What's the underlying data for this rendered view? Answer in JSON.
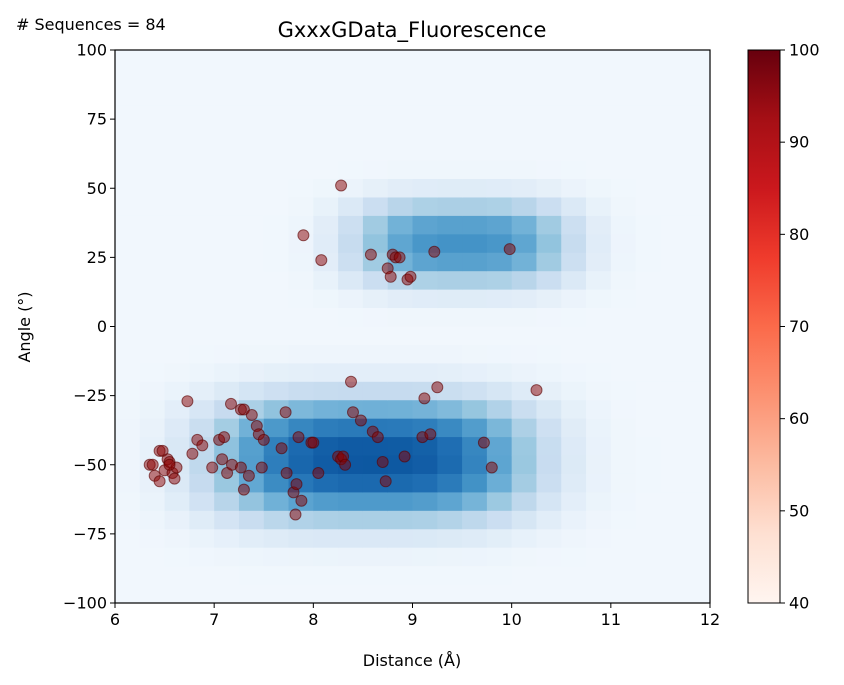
{
  "header": {
    "annotation": "# Sequences = 84"
  },
  "chart_data": {
    "type": "scatter",
    "title": "GxxxGData_Fluorescence",
    "xlabel": "Distance (Å)",
    "ylabel": "Angle (°)",
    "xlim": [
      6,
      12
    ],
    "ylim": [
      -100,
      100
    ],
    "xticks": [
      "6",
      "7",
      "8",
      "9",
      "10",
      "11",
      "12"
    ],
    "yticks": [
      "−100",
      "−75",
      "−50",
      "−25",
      "0",
      "25",
      "50",
      "75",
      "100"
    ],
    "grid": false,
    "background": {
      "type": "heatmap",
      "colormap": "Blues",
      "x_bins": 24,
      "y_bins": 30,
      "clusters": [
        {
          "x": 8.6,
          "y": -48,
          "sx": 1.3,
          "sy": 17,
          "w": 1.0
        },
        {
          "x": 9.5,
          "y": 30,
          "sx": 0.9,
          "sy": 12,
          "w": 0.72
        }
      ]
    },
    "colorbar": {
      "colormap": "Reds",
      "min": 40,
      "max": 100,
      "ticks": [
        "40",
        "50",
        "60",
        "70",
        "80",
        "90",
        "100"
      ]
    },
    "points_color": "#8b0000",
    "points": [
      {
        "x": 6.35,
        "y": -50,
        "v": 100
      },
      {
        "x": 6.38,
        "y": -50,
        "v": 100
      },
      {
        "x": 6.4,
        "y": -54,
        "v": 100
      },
      {
        "x": 6.45,
        "y": -56,
        "v": 100
      },
      {
        "x": 6.45,
        "y": -45,
        "v": 100
      },
      {
        "x": 6.48,
        "y": -45,
        "v": 100
      },
      {
        "x": 6.5,
        "y": -52,
        "v": 100
      },
      {
        "x": 6.53,
        "y": -48,
        "v": 100
      },
      {
        "x": 6.55,
        "y": -49,
        "v": 100
      },
      {
        "x": 6.58,
        "y": -53,
        "v": 100
      },
      {
        "x": 6.6,
        "y": -55,
        "v": 100
      },
      {
        "x": 6.62,
        "y": -51,
        "v": 100
      },
      {
        "x": 6.55,
        "y": -50,
        "v": 100
      },
      {
        "x": 6.73,
        "y": -27,
        "v": 100
      },
      {
        "x": 6.78,
        "y": -46,
        "v": 100
      },
      {
        "x": 6.83,
        "y": -41,
        "v": 100
      },
      {
        "x": 6.88,
        "y": -43,
        "v": 100
      },
      {
        "x": 6.98,
        "y": -51,
        "v": 100
      },
      {
        "x": 7.05,
        "y": -41,
        "v": 100
      },
      {
        "x": 7.1,
        "y": -40,
        "v": 100
      },
      {
        "x": 7.08,
        "y": -48,
        "v": 100
      },
      {
        "x": 7.13,
        "y": -53,
        "v": 100
      },
      {
        "x": 7.18,
        "y": -50,
        "v": 100
      },
      {
        "x": 7.17,
        "y": -28,
        "v": 100
      },
      {
        "x": 7.27,
        "y": -30,
        "v": 100
      },
      {
        "x": 7.3,
        "y": -30,
        "v": 100
      },
      {
        "x": 7.27,
        "y": -51,
        "v": 100
      },
      {
        "x": 7.3,
        "y": -59,
        "v": 100
      },
      {
        "x": 7.35,
        "y": -54,
        "v": 100
      },
      {
        "x": 7.38,
        "y": -32,
        "v": 100
      },
      {
        "x": 7.43,
        "y": -36,
        "v": 100
      },
      {
        "x": 7.45,
        "y": -39,
        "v": 100
      },
      {
        "x": 7.5,
        "y": -41,
        "v": 100
      },
      {
        "x": 7.48,
        "y": -51,
        "v": 100
      },
      {
        "x": 7.68,
        "y": -44,
        "v": 100
      },
      {
        "x": 7.72,
        "y": -31,
        "v": 100
      },
      {
        "x": 7.73,
        "y": -53,
        "v": 100
      },
      {
        "x": 7.8,
        "y": -60,
        "v": 100
      },
      {
        "x": 7.82,
        "y": -68,
        "v": 100
      },
      {
        "x": 7.83,
        "y": -57,
        "v": 100
      },
      {
        "x": 7.85,
        "y": -40,
        "v": 100
      },
      {
        "x": 7.88,
        "y": -63,
        "v": 100
      },
      {
        "x": 7.98,
        "y": -42,
        "v": 100
      },
      {
        "x": 8.0,
        "y": -42,
        "v": 100
      },
      {
        "x": 8.05,
        "y": -53,
        "v": 100
      },
      {
        "x": 8.25,
        "y": -47,
        "v": 100
      },
      {
        "x": 8.28,
        "y": -48,
        "v": 100
      },
      {
        "x": 8.3,
        "y": -47,
        "v": 100
      },
      {
        "x": 8.32,
        "y": -50,
        "v": 100
      },
      {
        "x": 8.38,
        "y": -20,
        "v": 100
      },
      {
        "x": 8.4,
        "y": -31,
        "v": 100
      },
      {
        "x": 8.48,
        "y": -34,
        "v": 100
      },
      {
        "x": 8.6,
        "y": -38,
        "v": 100
      },
      {
        "x": 8.65,
        "y": -40,
        "v": 100
      },
      {
        "x": 8.7,
        "y": -49,
        "v": 100
      },
      {
        "x": 8.73,
        "y": -56,
        "v": 100
      },
      {
        "x": 8.92,
        "y": -47,
        "v": 100
      },
      {
        "x": 9.1,
        "y": -40,
        "v": 100
      },
      {
        "x": 9.12,
        "y": -26,
        "v": 100
      },
      {
        "x": 9.18,
        "y": -39,
        "v": 100
      },
      {
        "x": 9.25,
        "y": -22,
        "v": 100
      },
      {
        "x": 9.72,
        "y": -42,
        "v": 100
      },
      {
        "x": 9.8,
        "y": -51,
        "v": 100
      },
      {
        "x": 10.25,
        "y": -23,
        "v": 100
      },
      {
        "x": 7.9,
        "y": 33,
        "v": 100
      },
      {
        "x": 8.08,
        "y": 24,
        "v": 100
      },
      {
        "x": 8.28,
        "y": 51,
        "v": 100
      },
      {
        "x": 8.58,
        "y": 26,
        "v": 100
      },
      {
        "x": 8.75,
        "y": 21,
        "v": 100
      },
      {
        "x": 8.78,
        "y": 18,
        "v": 100
      },
      {
        "x": 8.8,
        "y": 26,
        "v": 100
      },
      {
        "x": 8.83,
        "y": 25,
        "v": 100
      },
      {
        "x": 8.87,
        "y": 25,
        "v": 100
      },
      {
        "x": 8.95,
        "y": 17,
        "v": 100
      },
      {
        "x": 8.98,
        "y": 18,
        "v": 100
      },
      {
        "x": 9.22,
        "y": 27,
        "v": 100
      },
      {
        "x": 9.98,
        "y": 28,
        "v": 100
      }
    ]
  }
}
